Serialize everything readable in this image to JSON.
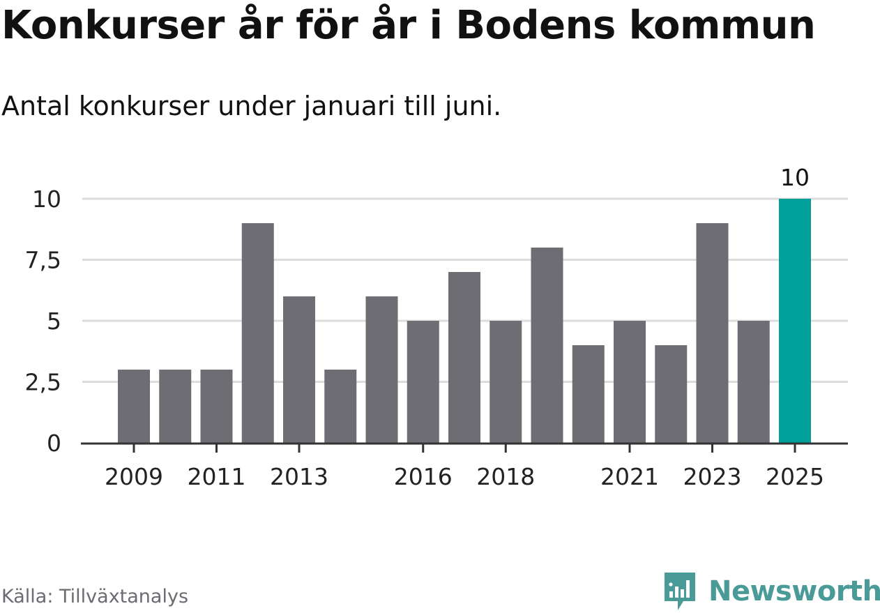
{
  "title": "Konkurser år för år i Bodens kommun",
  "subtitle": "Antal konkurser under januari till juni.",
  "source": "Källa: Tillväxtanalys",
  "brand": {
    "name": "Newsworthy",
    "icon": "newsworthy-logo-icon",
    "color": "#4a9b98"
  },
  "colors": {
    "bar": "#6e6d73",
    "highlight": "#00a09a",
    "grid": "#dcdcdc",
    "axis": "#333333"
  },
  "chart_data": {
    "type": "bar",
    "categories": [
      "2009",
      "2010",
      "2011",
      "2012",
      "2013",
      "2014",
      "2015",
      "2016",
      "2017",
      "2018",
      "2019",
      "2020",
      "2021",
      "2022",
      "2023",
      "2024",
      "2025"
    ],
    "values": [
      3,
      3,
      3,
      9,
      6,
      3,
      6,
      5,
      7,
      5,
      8,
      4,
      5,
      4,
      9,
      5,
      10
    ],
    "highlight_category": "2025",
    "data_labels": [
      {
        "category": "2025",
        "text": "10"
      }
    ],
    "x_tick_labels": [
      "2009",
      "2011",
      "2013",
      "2016",
      "2018",
      "2021",
      "2023",
      "2025"
    ],
    "y_ticks": [
      {
        "value": 0,
        "label": "0"
      },
      {
        "value": 2.5,
        "label": "2,5"
      },
      {
        "value": 5,
        "label": "5"
      },
      {
        "value": 7.5,
        "label": "7,5"
      },
      {
        "value": 10,
        "label": "10"
      }
    ],
    "ylim": [
      0,
      10
    ],
    "grid": true,
    "legend": "none",
    "xlabel": "",
    "ylabel": ""
  }
}
